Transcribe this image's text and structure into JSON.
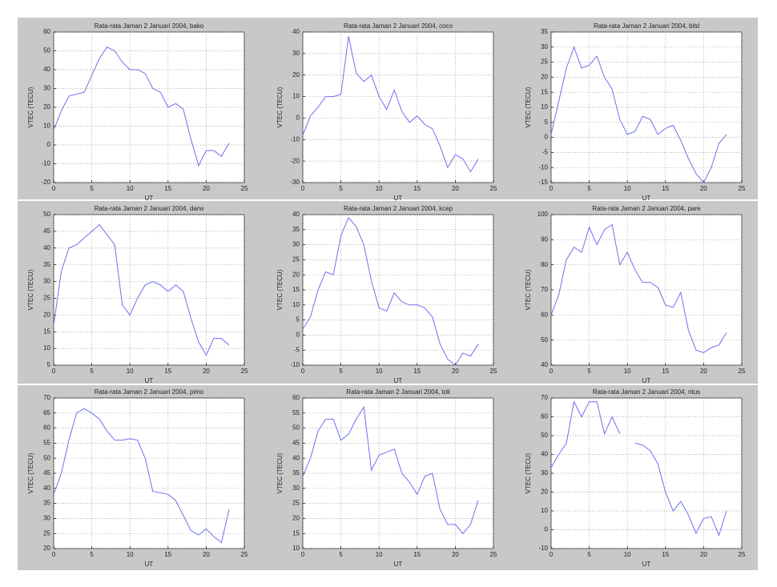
{
  "chart_data": [
    {
      "type": "line",
      "title": "Rata-rata Jaman 2 Januari 2004, bako",
      "x_label": "UT",
      "y_label": "VTEC (TECU)",
      "x": [
        0,
        1,
        2,
        3,
        4,
        5,
        6,
        7,
        8,
        9,
        10,
        11,
        12,
        13,
        14,
        15,
        16,
        17,
        18,
        19,
        20,
        21,
        22,
        23
      ],
      "series": [
        {
          "color": "#6f6ff0",
          "values": [
            8,
            18,
            26,
            27,
            28,
            37,
            46,
            52,
            50,
            44,
            40,
            40,
            38,
            30,
            28,
            20,
            22,
            19,
            3,
            -11,
            -3,
            -3,
            -6,
            1
          ]
        }
      ],
      "xlim": [
        0,
        25
      ],
      "xticks": [
        0,
        5,
        10,
        15,
        20,
        25
      ],
      "ylim": [
        -20,
        60
      ],
      "yticks": [
        -20,
        -10,
        0,
        10,
        20,
        30,
        40,
        50,
        60
      ],
      "grid": true
    },
    {
      "type": "line",
      "title": "Rata-rata Jaman 2 Januari 2004, coco",
      "x_label": "UT",
      "y_label": "VTEC (TECU)",
      "x": [
        0,
        1,
        2,
        3,
        4,
        5,
        6,
        7,
        8,
        9,
        10,
        11,
        12,
        13,
        14,
        15,
        16,
        17,
        18,
        19,
        20,
        21,
        22,
        23
      ],
      "series": [
        {
          "color": "#6f6ff0",
          "values": [
            -8,
            1,
            5,
            10,
            10,
            11,
            38,
            21,
            17,
            20,
            10,
            4,
            13,
            3,
            -2,
            1,
            -3,
            -5,
            -13,
            -23,
            -17,
            -19,
            -25,
            -19
          ]
        }
      ],
      "xlim": [
        0,
        25
      ],
      "xticks": [
        0,
        5,
        10,
        15,
        20,
        25
      ],
      "ylim": [
        -30,
        40
      ],
      "yticks": [
        -30,
        -20,
        -10,
        0,
        10,
        20,
        30,
        40
      ],
      "grid": true
    },
    {
      "type": "line",
      "title": "Rata-rata Jaman 2 Januari 2004, bitd",
      "x_label": "UT",
      "y_label": "VTEC (TECU)",
      "x": [
        0,
        1,
        2,
        3,
        4,
        5,
        6,
        7,
        8,
        9,
        10,
        11,
        12,
        13,
        14,
        15,
        16,
        17,
        18,
        19,
        20,
        21,
        22,
        23
      ],
      "series": [
        {
          "color": "#6f6ff0",
          "values": [
            1,
            12,
            23,
            30,
            23,
            24,
            27,
            20,
            16,
            6,
            1,
            2,
            7,
            6,
            1,
            3,
            4,
            -1,
            -7,
            -12,
            -15,
            -10,
            -2,
            1
          ]
        }
      ],
      "xlim": [
        0,
        25
      ],
      "xticks": [
        0,
        5,
        10,
        15,
        20,
        25
      ],
      "ylim": [
        -15,
        35
      ],
      "yticks": [
        -15,
        -10,
        -5,
        0,
        5,
        10,
        15,
        20,
        25,
        30,
        35
      ],
      "grid": true
    },
    {
      "type": "line",
      "title": "Rata-rata Jaman 2 Januari 2004, darw",
      "x_label": "UT",
      "y_label": "VTEC (TECU)",
      "x": [
        0,
        1,
        2,
        3,
        4,
        5,
        6,
        7,
        8,
        9,
        10,
        11,
        12,
        13,
        14,
        15,
        16,
        17,
        18,
        19,
        20,
        21,
        22,
        23
      ],
      "series": [
        {
          "color": "#6f6ff0",
          "values": [
            17,
            33,
            40,
            41,
            43,
            45,
            47,
            44,
            41,
            23,
            20,
            25,
            29,
            30,
            29,
            27,
            29,
            27,
            19,
            12,
            8,
            13,
            13,
            11
          ]
        }
      ],
      "xlim": [
        0,
        25
      ],
      "xticks": [
        0,
        5,
        10,
        15,
        20,
        25
      ],
      "ylim": [
        5,
        50
      ],
      "yticks": [
        5,
        10,
        15,
        20,
        25,
        30,
        35,
        40,
        45,
        50
      ],
      "grid": true
    },
    {
      "type": "line",
      "title": "Rata-rata Jaman 2 Januari 2004, kcep",
      "x_label": "UT",
      "y_label": "VTEC (TECU)",
      "x": [
        0,
        1,
        2,
        3,
        4,
        5,
        6,
        7,
        8,
        9,
        10,
        11,
        12,
        13,
        14,
        15,
        16,
        17,
        18,
        19,
        20,
        21,
        22,
        23
      ],
      "series": [
        {
          "color": "#6f6ff0",
          "values": [
            2,
            6,
            15,
            21,
            20,
            33,
            39,
            36,
            30,
            18,
            9,
            8,
            14,
            11,
            10,
            10,
            9,
            6,
            -3,
            -8,
            -10,
            -6,
            -7,
            -3
          ]
        }
      ],
      "xlim": [
        0,
        25
      ],
      "xticks": [
        0,
        5,
        10,
        15,
        20,
        25
      ],
      "ylim": [
        -10,
        40
      ],
      "yticks": [
        -10,
        -5,
        0,
        5,
        10,
        15,
        20,
        25,
        30,
        35,
        40
      ],
      "grid": true
    },
    {
      "type": "line",
      "title": "Rata-rata Jaman 2 Januari 2004, pare",
      "x_label": "UT",
      "y_label": "VTEC (TECU)",
      "x": [
        0,
        1,
        2,
        3,
        4,
        5,
        6,
        7,
        8,
        9,
        10,
        11,
        12,
        13,
        14,
        15,
        16,
        17,
        18,
        19,
        20,
        21,
        22,
        23
      ],
      "series": [
        {
          "color": "#6f6ff0",
          "values": [
            60,
            68,
            82,
            87,
            85,
            95,
            88,
            94,
            96,
            80,
            85,
            78,
            73,
            73,
            71,
            64,
            63,
            69,
            54,
            46,
            45,
            47,
            48,
            53
          ]
        }
      ],
      "xlim": [
        0,
        25
      ],
      "xticks": [
        0,
        5,
        10,
        15,
        20,
        25
      ],
      "ylim": [
        40,
        100
      ],
      "yticks": [
        40,
        50,
        60,
        70,
        80,
        90,
        100
      ],
      "grid": true
    },
    {
      "type": "line",
      "title": "Rata-rata Jaman 2 Januari 2004, pimo",
      "x_label": "UT",
      "y_label": "VTEC (TECU)",
      "x": [
        0,
        1,
        2,
        3,
        4,
        5,
        6,
        7,
        8,
        9,
        10,
        11,
        12,
        13,
        14,
        15,
        16,
        17,
        18,
        19,
        20,
        21,
        22,
        23
      ],
      "series": [
        {
          "color": "#6f6ff0",
          "values": [
            38,
            45,
            56,
            65,
            66.5,
            65,
            63,
            59,
            56,
            56,
            56.5,
            56,
            50,
            39,
            38.5,
            38,
            36,
            31,
            26,
            24.5,
            26.5,
            24,
            22,
            33
          ]
        }
      ],
      "xlim": [
        0,
        25
      ],
      "xticks": [
        0,
        5,
        10,
        15,
        20,
        25
      ],
      "ylim": [
        20,
        70
      ],
      "yticks": [
        20,
        25,
        30,
        35,
        40,
        45,
        50,
        55,
        60,
        65,
        70
      ],
      "grid": true
    },
    {
      "type": "line",
      "title": "Rata-rata Jaman 2 Januari 2004, toli",
      "x_label": "UT",
      "y_label": "VTEC (TECU)",
      "x": [
        0,
        1,
        2,
        3,
        4,
        5,
        6,
        7,
        8,
        9,
        10,
        11,
        12,
        13,
        14,
        15,
        16,
        17,
        18,
        19,
        20,
        21,
        22,
        23
      ],
      "series": [
        {
          "color": "#6f6ff0",
          "values": [
            34,
            40,
            49,
            53,
            53,
            46,
            48,
            53,
            57,
            36,
            41,
            42,
            43,
            35,
            32,
            28,
            34,
            35,
            23,
            18,
            18,
            15,
            18,
            26
          ]
        }
      ],
      "xlim": [
        0,
        25
      ],
      "xticks": [
        0,
        5,
        10,
        15,
        20,
        25
      ],
      "ylim": [
        10,
        60
      ],
      "yticks": [
        10,
        15,
        20,
        25,
        30,
        35,
        40,
        45,
        50,
        55,
        60
      ],
      "grid": true
    },
    {
      "type": "line",
      "title": "Rata-rata Jaman 2 Januari 2004, ntus",
      "x_label": "UT",
      "y_label": "VTEC (TECU)",
      "x": [
        0,
        1,
        2,
        3,
        4,
        5,
        6,
        7,
        8,
        9,
        10,
        11,
        12,
        13,
        14,
        15,
        16,
        17,
        18,
        19,
        20,
        21,
        22,
        23
      ],
      "series": [
        {
          "color": "#6f6ff0",
          "values": [
            33,
            40,
            46,
            68,
            60,
            68,
            68,
            51,
            60,
            51,
            null,
            46,
            45,
            42,
            35,
            20,
            10,
            15,
            8,
            -2,
            6,
            7,
            -3,
            10
          ]
        }
      ],
      "xlim": [
        0,
        25
      ],
      "xticks": [
        0,
        5,
        10,
        15,
        20,
        25
      ],
      "ylim": [
        -10,
        70
      ],
      "yticks": [
        -10,
        0,
        10,
        20,
        30,
        40,
        50,
        60,
        70
      ],
      "grid": true
    }
  ]
}
